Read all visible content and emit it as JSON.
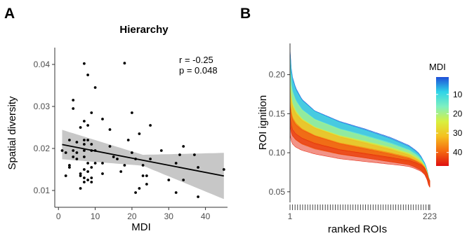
{
  "chart_data": [
    {
      "panel": "A",
      "type": "scatter",
      "title": "Hierarchy",
      "xlabel": "MDI",
      "ylabel": "Spatial diversity",
      "xlim": [
        -1,
        46
      ],
      "ylim": [
        0.006,
        0.044
      ],
      "x_ticks": [
        "0",
        "10",
        "20",
        "30",
        "40"
      ],
      "x_tick_values": [
        0,
        10,
        20,
        30,
        40
      ],
      "y_ticks": [
        "0.01",
        "0.02",
        "0.03",
        "0.04"
      ],
      "y_tick_values": [
        0.01,
        0.02,
        0.03,
        0.04
      ],
      "grid": false,
      "annotation": [
        "r  = -0.25",
        "p = 0.048"
      ],
      "point_color": "#000000",
      "band_color": "#bdbdbd",
      "fit": {
        "intercept": 0.0211,
        "slope": -0.00017,
        "x_range": [
          1,
          45
        ]
      },
      "band_halfwidth": {
        "x": [
          1,
          23,
          45
        ],
        "halfwidth": [
          0.0035,
          0.0013,
          0.0055
        ]
      },
      "points": [
        [
          1,
          0.0195
        ],
        [
          2,
          0.019
        ],
        [
          2,
          0.0135
        ],
        [
          3,
          0.022
        ],
        [
          3,
          0.016
        ],
        [
          3,
          0.0155
        ],
        [
          4,
          0.0295
        ],
        [
          4,
          0.0315
        ],
        [
          4,
          0.018
        ],
        [
          4,
          0.0195
        ],
        [
          5,
          0.019
        ],
        [
          5,
          0.0175
        ],
        [
          5,
          0.0215
        ],
        [
          6,
          0.025
        ],
        [
          6,
          0.014
        ],
        [
          6,
          0.0105
        ],
        [
          6,
          0.0135
        ],
        [
          7,
          0.0265
        ],
        [
          7,
          0.022
        ],
        [
          7,
          0.021
        ],
        [
          7,
          0.0195
        ],
        [
          7,
          0.018
        ],
        [
          7,
          0.015
        ],
        [
          7,
          0.013
        ],
        [
          7,
          0.012
        ],
        [
          7,
          0.0402
        ],
        [
          8,
          0.0375
        ],
        [
          8,
          0.0255
        ],
        [
          8,
          0.022
        ],
        [
          8,
          0.0165
        ],
        [
          8,
          0.0145
        ],
        [
          8,
          0.0125
        ],
        [
          9,
          0.0285
        ],
        [
          9,
          0.021
        ],
        [
          9,
          0.0195
        ],
        [
          9,
          0.0155
        ],
        [
          9,
          0.013
        ],
        [
          9,
          0.012
        ],
        [
          10,
          0.0345
        ],
        [
          10,
          0.0195
        ],
        [
          10,
          0.0165
        ],
        [
          12,
          0.027
        ],
        [
          12,
          0.0165
        ],
        [
          12,
          0.014
        ],
        [
          14,
          0.0245
        ],
        [
          14,
          0.0205
        ],
        [
          15,
          0.018
        ],
        [
          16,
          0.0175
        ],
        [
          17,
          0.0145
        ],
        [
          18,
          0.0403
        ],
        [
          18,
          0.016
        ],
        [
          19,
          0.022
        ],
        [
          20,
          0.0285
        ],
        [
          20,
          0.019
        ],
        [
          21,
          0.0175
        ],
        [
          21,
          0.0095
        ],
        [
          22,
          0.0105
        ],
        [
          22,
          0.0235
        ],
        [
          23,
          0.016
        ],
        [
          23,
          0.0135
        ],
        [
          24,
          0.0115
        ],
        [
          24,
          0.0135
        ],
        [
          25,
          0.0255
        ],
        [
          25,
          0.0175
        ],
        [
          28,
          0.0195
        ],
        [
          30,
          0.0125
        ],
        [
          32,
          0.0165
        ],
        [
          32,
          0.0095
        ],
        [
          33,
          0.0185
        ],
        [
          34,
          0.0205
        ],
        [
          34,
          0.0125
        ],
        [
          37,
          0.0185
        ],
        [
          38,
          0.0155
        ],
        [
          38,
          0.0085
        ],
        [
          45,
          0.015
        ]
      ]
    },
    {
      "panel": "B",
      "type": "area",
      "xlabel": "ranked ROIs",
      "ylabel": "ROI ignition",
      "xlim": [
        1,
        223
      ],
      "ylim": [
        0.04,
        0.24
      ],
      "x_ticks": [
        "1",
        "223"
      ],
      "x_tick_values": [
        1,
        223
      ],
      "y_ticks": [
        "0.05",
        "0.10",
        "0.15",
        "0.20"
      ],
      "y_tick_values": [
        0.05,
        0.1,
        0.15,
        0.2
      ],
      "grid": false,
      "legend": {
        "title": "MDI",
        "position": "right",
        "ticks": [
          "10",
          "20",
          "30",
          "40"
        ],
        "tick_values": [
          10,
          20,
          30,
          40
        ],
        "range": [
          1,
          47
        ]
      },
      "colorscale": [
        "#1f4fd8",
        "#2fd4e8",
        "#7ff0c0",
        "#d8f040",
        "#f5c020",
        "#f56a10",
        "#e01010"
      ],
      "series_mdi_range": [
        2,
        45
      ],
      "series_count": 15,
      "curves": {
        "x": [
          1,
          2,
          5,
          10,
          20,
          40,
          80,
          120,
          160,
          190,
          200,
          205,
          210,
          215,
          218,
          220,
          221,
          223
        ],
        "high_mdi_mean": [
          0.14,
          0.132,
          0.125,
          0.12,
          0.115,
          0.109,
          0.101,
          0.096,
          0.091,
          0.087,
          0.084,
          0.082,
          0.08,
          0.076,
          0.071,
          0.067,
          0.063,
          0.06
        ],
        "low_mdi_mean": [
          0.21,
          0.195,
          0.18,
          0.168,
          0.155,
          0.142,
          0.13,
          0.121,
          0.111,
          0.102,
          0.097,
          0.094,
          0.089,
          0.082,
          0.076,
          0.07,
          0.066,
          0.06
        ],
        "max_upper": [
          0.235,
          0.215,
          0.2,
          0.19,
          0.178,
          0.165,
          0.148,
          0.137,
          0.125,
          0.113,
          0.106,
          0.101,
          0.096,
          0.089,
          0.083,
          0.076,
          0.071,
          0.067
        ],
        "min_lower": [
          0.115,
          0.11,
          0.106,
          0.104,
          0.1,
          0.096,
          0.09,
          0.085,
          0.08,
          0.077,
          0.075,
          0.073,
          0.071,
          0.067,
          0.062,
          0.058,
          0.054,
          0.048
        ]
      }
    }
  ],
  "labels": {
    "panel_a": "A",
    "panel_b": "B"
  }
}
